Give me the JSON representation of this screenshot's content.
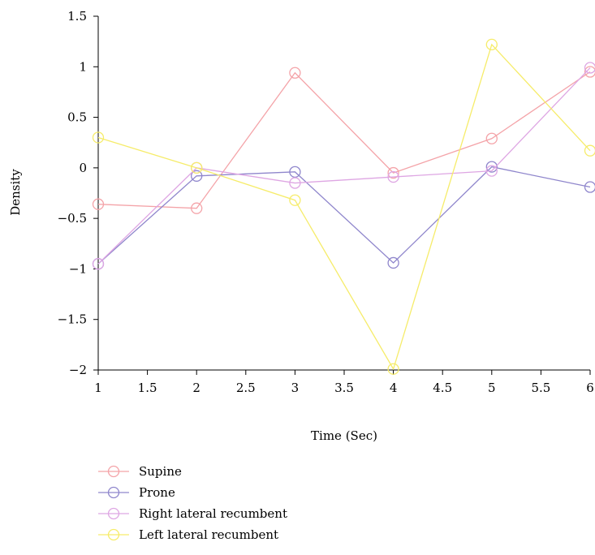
{
  "chart_data": {
    "type": "line",
    "xlabel": "Time (Sec)",
    "ylabel": "Density",
    "xlim": [
      1,
      6
    ],
    "ylim": [
      -2,
      1.5
    ],
    "xticks": [
      "1",
      "1.5",
      "2",
      "2.5",
      "3",
      "3.5",
      "4",
      "4.5",
      "5",
      "5.5",
      "6"
    ],
    "yticks": [
      "1.5",
      "1",
      "0.5",
      "0",
      "−0.5",
      "−1",
      "−1.5",
      "−2"
    ],
    "x": [
      1,
      2,
      3,
      4,
      5,
      6
    ],
    "grid": false,
    "legend_position": "bottom-left",
    "marker": "open-circle",
    "series": [
      {
        "name": "Supine",
        "color": "#f4a3a8",
        "values": [
          -0.36,
          -0.4,
          0.94,
          -0.05,
          0.29,
          0.95
        ]
      },
      {
        "name": "Prone",
        "color": "#8f86cc",
        "values": [
          -0.95,
          -0.08,
          -0.04,
          -0.94,
          0.01,
          -0.19
        ]
      },
      {
        "name": "Right lateral recumbent",
        "color": "#dea6e3",
        "values": [
          -0.95,
          0.0,
          -0.15,
          -0.09,
          -0.03,
          0.99
        ]
      },
      {
        "name": "Left lateral recumbent",
        "color": "#f6ec6a",
        "values": [
          0.3,
          0.0,
          -0.32,
          -1.99,
          1.22,
          0.17
        ]
      }
    ]
  }
}
